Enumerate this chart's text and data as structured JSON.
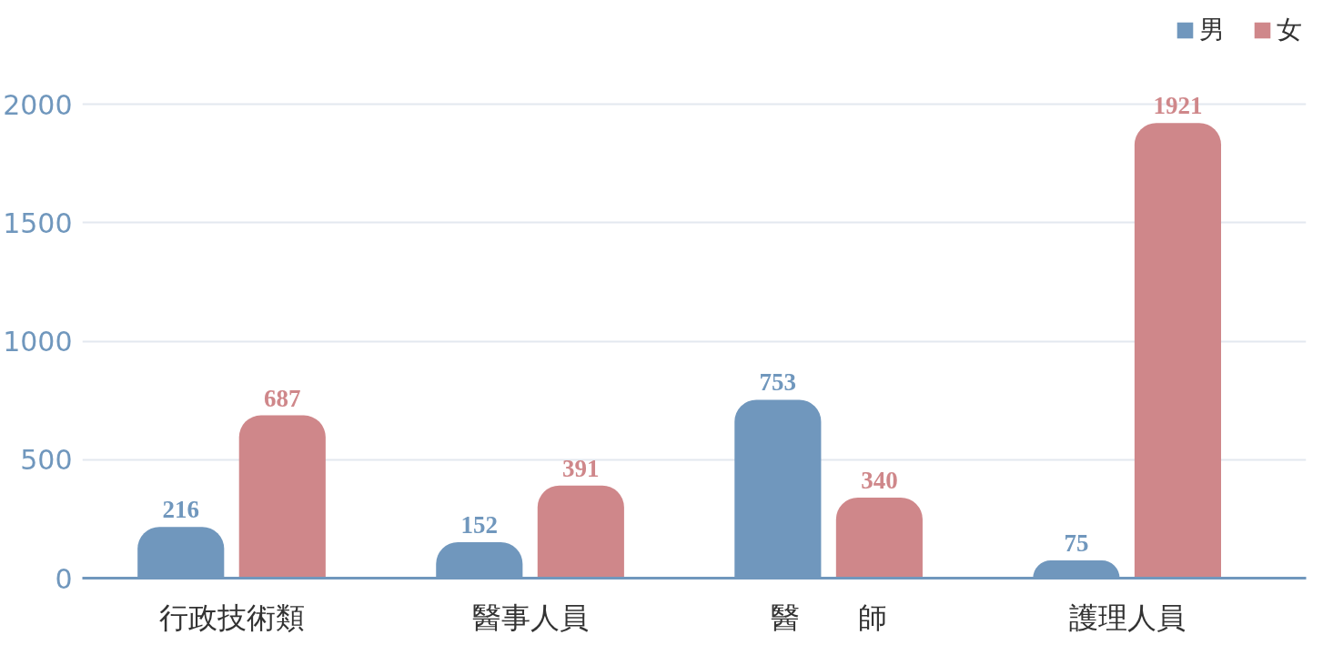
{
  "chart_data": {
    "type": "bar",
    "categories": [
      "行政技術類",
      "醫事人員",
      "醫　　師",
      "護理人員"
    ],
    "series": [
      {
        "name": "男",
        "color": "#7097bd",
        "values": [
          216,
          152,
          753,
          75
        ]
      },
      {
        "name": "女",
        "color": "#cf878a",
        "values": [
          687,
          391,
          340,
          1921
        ]
      }
    ],
    "ylim": [
      0,
      2000
    ],
    "yticks": [
      0,
      500,
      1000,
      1500,
      2000
    ],
    "grid": "y",
    "legend": "top right",
    "data_labels": true
  }
}
